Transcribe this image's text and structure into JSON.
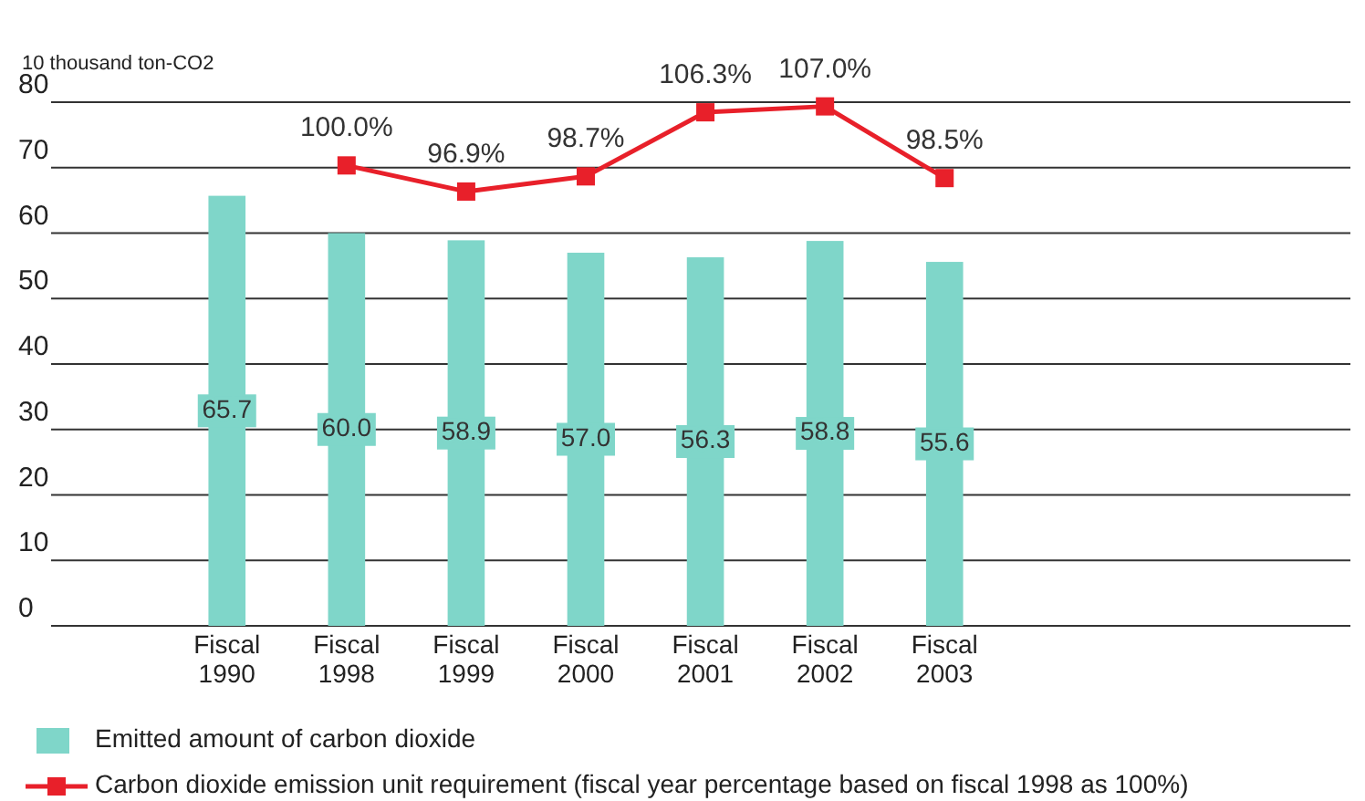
{
  "chart_data": {
    "type": "bar",
    "ylabel": "10 thousand ton-CO2",
    "categories": [
      "Fiscal 1990",
      "Fiscal 1998",
      "Fiscal 1999",
      "Fiscal 2000",
      "Fiscal 2001",
      "Fiscal 2002",
      "Fiscal 2003"
    ],
    "series": [
      {
        "name": "Emitted amount of carbon dioxide",
        "color": "#7fd6c9",
        "values": [
          65.7,
          60.0,
          58.9,
          57.0,
          56.3,
          58.8,
          55.6
        ],
        "value_labels": [
          "65.7",
          "60.0",
          "58.9",
          "57.0",
          "56.3",
          "58.8",
          "55.6"
        ]
      },
      {
        "name": "Carbon dioxide emission unit requirement (fiscal year percentage based on fiscal 1998 as 100%)",
        "type": "line",
        "axis": "y2",
        "color": "#e8202a",
        "marker": "square",
        "values": [
          null,
          100.0,
          96.9,
          98.7,
          106.3,
          107.0,
          98.5
        ],
        "value_labels": [
          null,
          "100.0%",
          "96.9%",
          "98.7%",
          "106.3%",
          "107.0%",
          "98.5%"
        ]
      }
    ],
    "ylim": [
      0,
      80
    ],
    "yticks": [
      0,
      10,
      20,
      30,
      40,
      50,
      60,
      70,
      80
    ],
    "y2lim": [
      45.4,
      107.5
    ],
    "grid": "y",
    "data_labels": true,
    "legend": "bottom"
  }
}
